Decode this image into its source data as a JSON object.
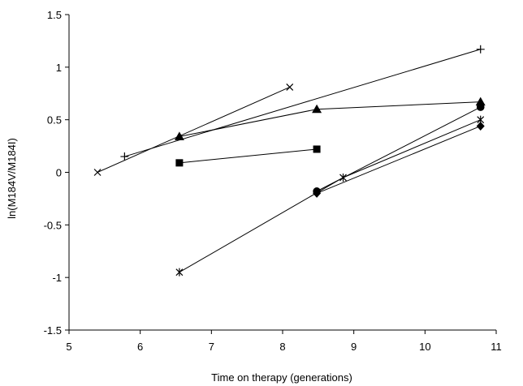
{
  "chart_data": {
    "type": "line",
    "title": "",
    "xlabel": "Time on therapy (generations)",
    "ylabel": "ln(M184V/M184I)",
    "xlim": [
      5,
      11
    ],
    "ylim": [
      -1.5,
      1.5
    ],
    "xticks": [
      "5",
      "6",
      "7",
      "8",
      "9",
      "10",
      "11"
    ],
    "yticks": [
      "-1.5",
      "-1",
      "-0.5",
      "0",
      "0.5",
      "1",
      "1.5"
    ],
    "grid": false,
    "legend": "none",
    "series": [
      {
        "marker": "x",
        "x": [
          5.4,
          8.1
        ],
        "y": [
          0.0,
          0.81
        ]
      },
      {
        "marker": "plus",
        "x": [
          5.78,
          10.78
        ],
        "y": [
          0.15,
          1.17
        ]
      },
      {
        "marker": "triangle",
        "x": [
          6.55,
          8.48,
          10.78
        ],
        "y": [
          0.34,
          0.6,
          0.67
        ]
      },
      {
        "marker": "square",
        "x": [
          6.55,
          8.48
        ],
        "y": [
          0.09,
          0.22
        ]
      },
      {
        "marker": "asterisk",
        "x": [
          6.55,
          8.85,
          10.78
        ],
        "y": [
          -0.95,
          -0.05,
          0.5
        ]
      },
      {
        "marker": "circle",
        "x": [
          8.48,
          10.78
        ],
        "y": [
          -0.18,
          0.62
        ]
      },
      {
        "marker": "diamond",
        "x": [
          8.48,
          10.78
        ],
        "y": [
          -0.2,
          0.44
        ]
      }
    ]
  }
}
